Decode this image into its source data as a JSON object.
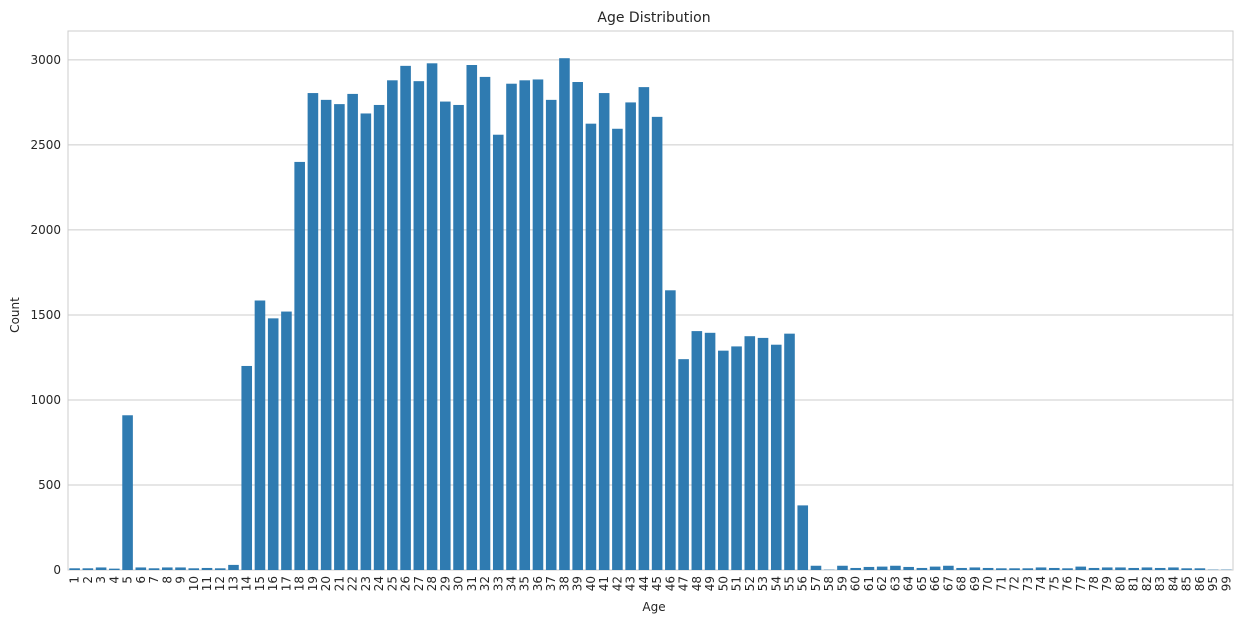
{
  "chart_data": {
    "type": "bar",
    "title": "Age Distribution",
    "xlabel": "Age",
    "ylabel": "Count",
    "ylim": [
      0,
      3170
    ],
    "yticks": [
      0,
      500,
      1000,
      1500,
      2000,
      2500,
      3000
    ],
    "grid": "horizontal",
    "bar_color": "#2f7bb1",
    "categories": [
      "1",
      "2",
      "3",
      "4",
      "5",
      "6",
      "7",
      "8",
      "9",
      "10",
      "11",
      "12",
      "13",
      "14",
      "15",
      "16",
      "17",
      "18",
      "19",
      "20",
      "21",
      "22",
      "23",
      "24",
      "25",
      "26",
      "27",
      "28",
      "29",
      "30",
      "31",
      "32",
      "33",
      "34",
      "35",
      "36",
      "37",
      "38",
      "39",
      "40",
      "41",
      "42",
      "43",
      "44",
      "45",
      "46",
      "47",
      "48",
      "49",
      "50",
      "51",
      "52",
      "53",
      "54",
      "55",
      "56",
      "57",
      "58",
      "59",
      "60",
      "61",
      "62",
      "63",
      "64",
      "65",
      "66",
      "67",
      "68",
      "69",
      "70",
      "71",
      "72",
      "73",
      "74",
      "75",
      "76",
      "77",
      "78",
      "79",
      "80",
      "81",
      "82",
      "83",
      "84",
      "85",
      "86",
      "95",
      "99"
    ],
    "values": [
      10,
      10,
      15,
      8,
      910,
      15,
      10,
      15,
      15,
      10,
      12,
      10,
      30,
      1200,
      1585,
      1480,
      1520,
      2400,
      2805,
      2765,
      2740,
      2800,
      2685,
      2735,
      2880,
      2965,
      2875,
      2980,
      2755,
      2735,
      2970,
      2900,
      2560,
      2860,
      2880,
      2885,
      2765,
      3010,
      2870,
      2625,
      2805,
      2595,
      2750,
      2840,
      2665,
      1645,
      1240,
      1405,
      1395,
      1290,
      1315,
      1375,
      1365,
      1325,
      1390,
      380,
      25,
      2,
      25,
      12,
      18,
      20,
      25,
      18,
      12,
      20,
      25,
      12,
      15,
      12,
      10,
      10,
      10,
      15,
      12,
      10,
      20,
      12,
      15,
      15,
      12,
      15,
      12,
      15,
      10,
      10,
      2,
      2
    ]
  }
}
